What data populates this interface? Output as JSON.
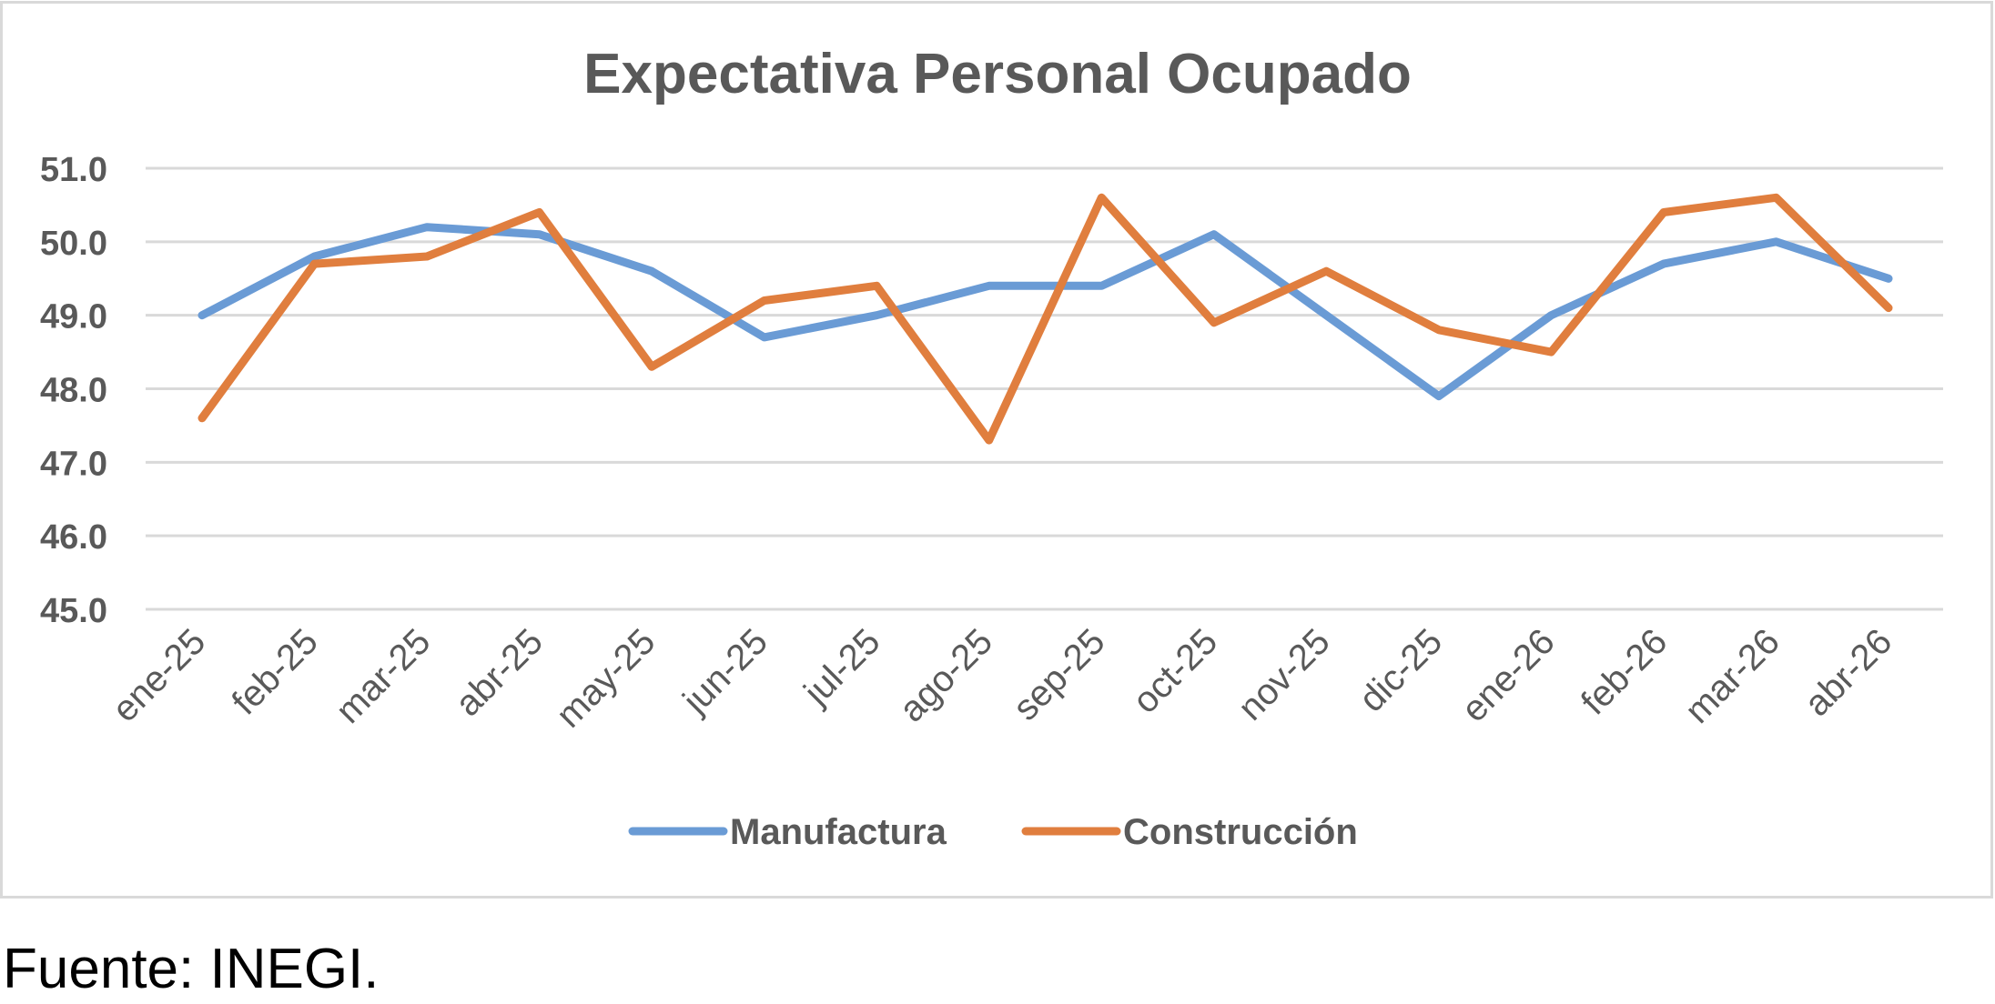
{
  "source_note": "Fuente: INEGI.",
  "colors": {
    "manufactura": "#6A9BD5",
    "construccion": "#E07E3E",
    "grid": "#d9d9d9",
    "text": "#595959",
    "border": "#d9d9d9"
  },
  "chart_data": {
    "type": "line",
    "title": "Expectativa Personal Ocupado",
    "xlabel": "",
    "ylabel": "",
    "categories": [
      "ene-25",
      "feb-25",
      "mar-25",
      "abr-25",
      "may-25",
      "jun-25",
      "jul-25",
      "ago-25",
      "sep-25",
      "oct-25",
      "nov-25",
      "dic-25",
      "ene-26",
      "feb-26",
      "mar-26",
      "abr-26"
    ],
    "ylim": [
      45.0,
      51.0
    ],
    "yticks": [
      "45.0",
      "46.0",
      "47.0",
      "48.0",
      "49.0",
      "50.0",
      "51.0"
    ],
    "grid": true,
    "legend_position": "bottom",
    "series": [
      {
        "name": "Manufactura",
        "color": "#6A9BD5",
        "values": [
          49.0,
          49.8,
          50.2,
          50.1,
          49.6,
          48.7,
          49.0,
          49.4,
          49.4,
          50.1,
          49.0,
          47.9,
          49.0,
          49.7,
          50.0,
          49.5
        ]
      },
      {
        "name": "Construcción",
        "color": "#E07E3E",
        "values": [
          47.6,
          49.7,
          49.8,
          50.4,
          48.3,
          49.2,
          49.4,
          47.3,
          50.6,
          48.9,
          49.6,
          48.8,
          48.5,
          50.4,
          50.6,
          49.1
        ]
      }
    ]
  }
}
